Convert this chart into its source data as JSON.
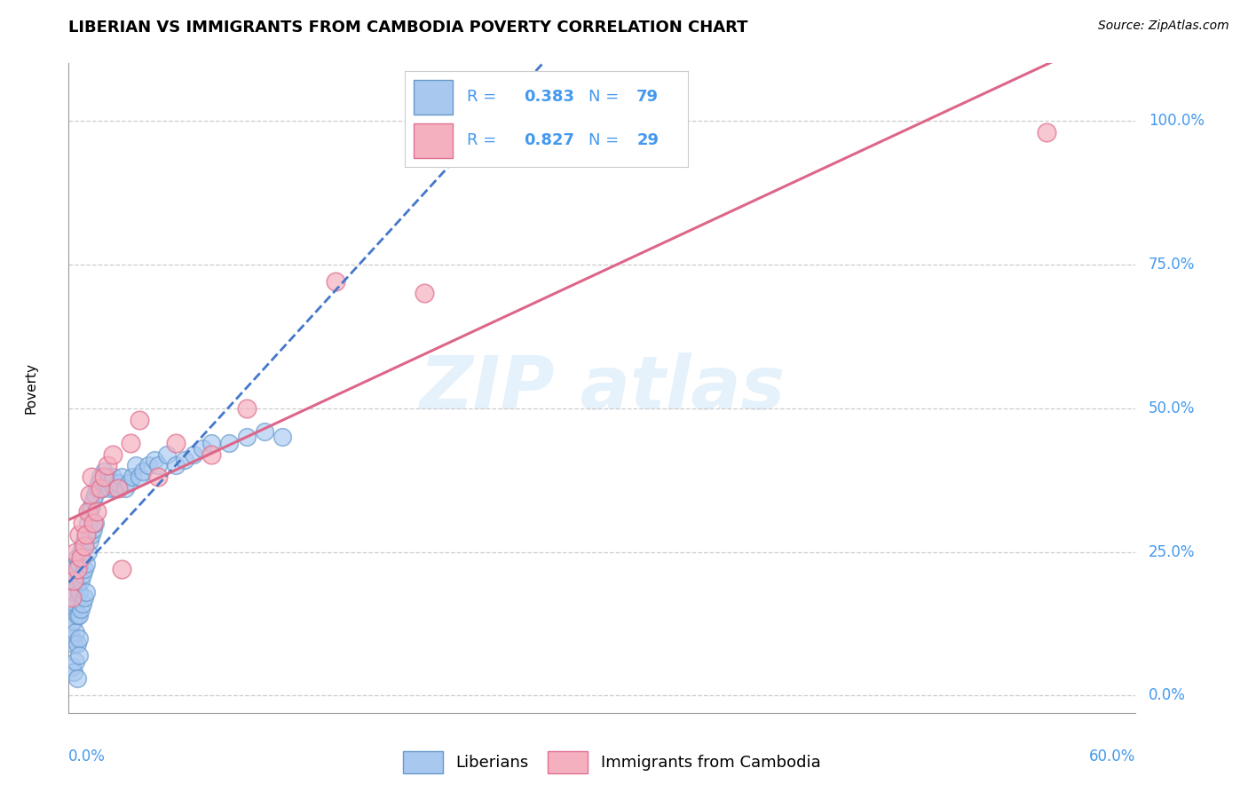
{
  "title": "LIBERIAN VS IMMIGRANTS FROM CAMBODIA POVERTY CORRELATION CHART",
  "source": "Source: ZipAtlas.com",
  "ylabel": "Poverty",
  "yticks": [
    0.0,
    0.25,
    0.5,
    0.75,
    1.0
  ],
  "ytick_labels": [
    "0.0%",
    "25.0%",
    "50.0%",
    "75.0%",
    "100.0%"
  ],
  "xmin": 0.0,
  "xmax": 0.6,
  "ymin": -0.03,
  "ymax": 1.1,
  "liberian_color": "#a8c8f0",
  "liberian_edge_color": "#6699cc",
  "cambodia_color": "#f5b0c0",
  "cambodia_edge_color": "#e07090",
  "trendline_liberian_color": "#4477cc",
  "trendline_cambodia_color": "#dd6688",
  "blue_text_color": "#4499ee",
  "legend_label_1": "Liberians",
  "legend_label_2": "Immigrants from Cambodia",
  "liberian_x": [
    0.001,
    0.001,
    0.002,
    0.002,
    0.002,
    0.003,
    0.003,
    0.003,
    0.003,
    0.004,
    0.004,
    0.004,
    0.005,
    0.005,
    0.005,
    0.005,
    0.006,
    0.006,
    0.006,
    0.006,
    0.007,
    0.007,
    0.007,
    0.008,
    0.008,
    0.008,
    0.009,
    0.009,
    0.009,
    0.01,
    0.01,
    0.01,
    0.011,
    0.011,
    0.012,
    0.012,
    0.013,
    0.013,
    0.014,
    0.014,
    0.015,
    0.015,
    0.016,
    0.017,
    0.018,
    0.019,
    0.02,
    0.021,
    0.022,
    0.023,
    0.024,
    0.025,
    0.026,
    0.028,
    0.03,
    0.032,
    0.034,
    0.036,
    0.038,
    0.04,
    0.042,
    0.045,
    0.048,
    0.05,
    0.055,
    0.06,
    0.065,
    0.07,
    0.075,
    0.08,
    0.09,
    0.1,
    0.11,
    0.12,
    0.002,
    0.003,
    0.004,
    0.005,
    0.006
  ],
  "liberian_y": [
    0.17,
    0.12,
    0.2,
    0.15,
    0.1,
    0.22,
    0.18,
    0.13,
    0.09,
    0.21,
    0.16,
    0.11,
    0.24,
    0.19,
    0.14,
    0.09,
    0.23,
    0.18,
    0.14,
    0.1,
    0.25,
    0.2,
    0.15,
    0.26,
    0.21,
    0.16,
    0.27,
    0.22,
    0.17,
    0.28,
    0.23,
    0.18,
    0.3,
    0.25,
    0.32,
    0.27,
    0.33,
    0.28,
    0.34,
    0.29,
    0.35,
    0.3,
    0.36,
    0.37,
    0.38,
    0.36,
    0.39,
    0.37,
    0.38,
    0.36,
    0.37,
    0.38,
    0.36,
    0.37,
    0.38,
    0.36,
    0.37,
    0.38,
    0.4,
    0.38,
    0.39,
    0.4,
    0.41,
    0.4,
    0.42,
    0.4,
    0.41,
    0.42,
    0.43,
    0.44,
    0.44,
    0.45,
    0.46,
    0.45,
    0.05,
    0.04,
    0.06,
    0.03,
    0.07
  ],
  "cambodia_x": [
    0.002,
    0.003,
    0.004,
    0.005,
    0.006,
    0.007,
    0.008,
    0.009,
    0.01,
    0.011,
    0.012,
    0.013,
    0.014,
    0.016,
    0.018,
    0.02,
    0.022,
    0.025,
    0.028,
    0.03,
    0.035,
    0.04,
    0.05,
    0.06,
    0.08,
    0.1,
    0.15,
    0.2,
    0.55
  ],
  "cambodia_y": [
    0.17,
    0.2,
    0.25,
    0.22,
    0.28,
    0.24,
    0.3,
    0.26,
    0.28,
    0.32,
    0.35,
    0.38,
    0.3,
    0.32,
    0.36,
    0.38,
    0.4,
    0.42,
    0.36,
    0.22,
    0.44,
    0.48,
    0.38,
    0.44,
    0.42,
    0.5,
    0.72,
    0.7,
    0.98
  ],
  "liberian_R": "0.383",
  "liberian_N": "79",
  "cambodia_R": "0.827",
  "cambodia_N": "29"
}
